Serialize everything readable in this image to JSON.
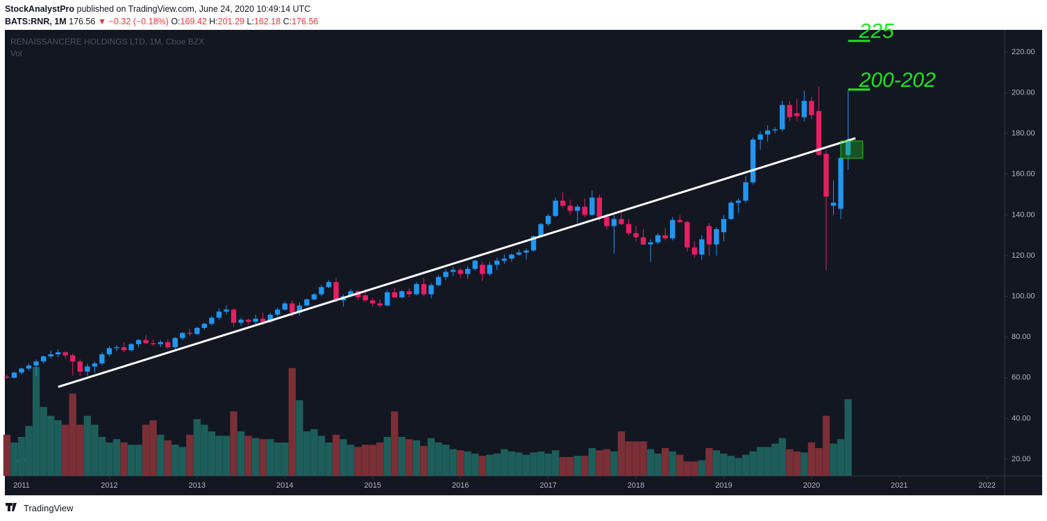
{
  "header": {
    "author": "StockAnalystPro",
    "published": "published on TradingView.com, June 24, 2020 10:49:14 UTC",
    "symbol": "BATS:RNR, 1M",
    "last": "176.56",
    "change": "▼ −0.32 (−0.18%)",
    "ohlc": [
      {
        "label": "O:",
        "value": "169.42"
      },
      {
        "label": "H:",
        "value": "201.29"
      },
      {
        "label": "L:",
        "value": "162.18"
      },
      {
        "label": "C:",
        "value": "176.56"
      }
    ]
  },
  "footer": {
    "brand": "TradingView"
  },
  "chart_data": {
    "type": "candlestick",
    "title": "RENAISSANCERE HOLDINGS LTD, 1M, Cboe BZX",
    "volume_label": "Vol",
    "up_color": "#2196f3",
    "down_color": "#e91e63",
    "vol_up_color": "#1d5e5b",
    "vol_down_color": "#7b2f36",
    "ylim": [
      11.8,
      230.9
    ],
    "yticks": [
      {
        "value": 20,
        "label": "20.00"
      },
      {
        "value": 40,
        "label": "40.00"
      },
      {
        "value": 60,
        "label": "60.00"
      },
      {
        "value": 80,
        "label": "80.00"
      },
      {
        "value": 100,
        "label": "100.00"
      },
      {
        "value": 120,
        "label": "120.00"
      },
      {
        "value": 140,
        "label": "140.00"
      },
      {
        "value": 160,
        "label": "160.00"
      },
      {
        "value": 180,
        "label": "180.00"
      },
      {
        "value": 200,
        "label": "200.00"
      },
      {
        "value": 220,
        "label": "220.00"
      }
    ],
    "xlim": [
      2010.81,
      2022.2
    ],
    "xticks": [
      2011,
      2012,
      2013,
      2014,
      2015,
      2016,
      2017,
      2018,
      2019,
      2020,
      2021,
      2022
    ],
    "vlim": [
      0,
      100
    ],
    "candles": [
      {
        "t": "2010-11",
        "o": 60.5,
        "h": 61.5,
        "l": 59.5,
        "c": 60,
        "v": 37
      },
      {
        "t": "2010-12",
        "o": 60,
        "h": 63,
        "l": 59.5,
        "c": 62.5,
        "v": 30
      },
      {
        "t": "2011-01",
        "o": 62.5,
        "h": 65,
        "l": 61.5,
        "c": 64.5,
        "v": 35
      },
      {
        "t": "2011-02",
        "o": 64.5,
        "h": 67,
        "l": 63.5,
        "c": 66,
        "v": 45
      },
      {
        "t": "2011-03",
        "o": 66,
        "h": 69,
        "l": 61,
        "c": 68,
        "v": 98
      },
      {
        "t": "2011-04",
        "o": 68,
        "h": 71,
        "l": 67,
        "c": 70.5,
        "v": 62
      },
      {
        "t": "2011-05",
        "o": 70.5,
        "h": 73.5,
        "l": 69.5,
        "c": 71.5,
        "v": 54
      },
      {
        "t": "2011-06",
        "o": 71.5,
        "h": 74,
        "l": 70,
        "c": 72.5,
        "v": 50
      },
      {
        "t": "2011-07",
        "o": 72.5,
        "h": 73,
        "l": 69.5,
        "c": 71,
        "v": 46
      },
      {
        "t": "2011-08",
        "o": 71,
        "h": 72,
        "l": 61,
        "c": 68,
        "v": 74
      },
      {
        "t": "2011-09",
        "o": 68,
        "h": 69,
        "l": 61,
        "c": 63,
        "v": 46
      },
      {
        "t": "2011-10",
        "o": 63,
        "h": 67,
        "l": 61,
        "c": 65.5,
        "v": 54
      },
      {
        "t": "2011-11",
        "o": 65.5,
        "h": 68,
        "l": 62.5,
        "c": 67,
        "v": 46
      },
      {
        "t": "2011-12",
        "o": 67,
        "h": 72.5,
        "l": 66,
        "c": 71.5,
        "v": 35
      },
      {
        "t": "2012-01",
        "o": 71.5,
        "h": 75.5,
        "l": 70.5,
        "c": 74.5,
        "v": 30
      },
      {
        "t": "2012-02",
        "o": 74.5,
        "h": 76,
        "l": 73,
        "c": 75,
        "v": 33
      },
      {
        "t": "2012-03",
        "o": 75,
        "h": 77.5,
        "l": 72.5,
        "c": 73.5,
        "v": 30
      },
      {
        "t": "2012-04",
        "o": 73.5,
        "h": 77,
        "l": 73,
        "c": 76.5,
        "v": 28
      },
      {
        "t": "2012-05",
        "o": 76.5,
        "h": 79,
        "l": 75,
        "c": 78.5,
        "v": 28
      },
      {
        "t": "2012-06",
        "o": 78.5,
        "h": 81,
        "l": 76.5,
        "c": 77,
        "v": 46
      },
      {
        "t": "2012-07",
        "o": 77,
        "h": 79,
        "l": 75.5,
        "c": 76.5,
        "v": 50
      },
      {
        "t": "2012-08",
        "o": 76.5,
        "h": 78.5,
        "l": 75,
        "c": 77.5,
        "v": 37
      },
      {
        "t": "2012-09",
        "o": 77.5,
        "h": 79,
        "l": 74,
        "c": 75,
        "v": 32
      },
      {
        "t": "2012-10",
        "o": 75,
        "h": 80,
        "l": 73,
        "c": 79.5,
        "v": 28
      },
      {
        "t": "2012-11",
        "o": 79.5,
        "h": 82.5,
        "l": 78.5,
        "c": 82,
        "v": 26
      },
      {
        "t": "2012-12",
        "o": 82,
        "h": 84,
        "l": 80.5,
        "c": 81.5,
        "v": 37
      },
      {
        "t": "2013-01",
        "o": 81.5,
        "h": 85,
        "l": 81,
        "c": 84.5,
        "v": 51
      },
      {
        "t": "2013-02",
        "o": 84.5,
        "h": 87,
        "l": 83.5,
        "c": 86.5,
        "v": 46
      },
      {
        "t": "2013-03",
        "o": 86.5,
        "h": 90.5,
        "l": 85.5,
        "c": 89.5,
        "v": 40
      },
      {
        "t": "2013-04",
        "o": 89.5,
        "h": 94,
        "l": 88.5,
        "c": 92.5,
        "v": 36
      },
      {
        "t": "2013-05",
        "o": 92.5,
        "h": 95.5,
        "l": 91,
        "c": 93.5,
        "v": 36
      },
      {
        "t": "2013-06",
        "o": 93.5,
        "h": 94,
        "l": 85,
        "c": 87,
        "v": 58
      },
      {
        "t": "2013-07",
        "o": 87,
        "h": 89.5,
        "l": 85.5,
        "c": 88.5,
        "v": 40
      },
      {
        "t": "2013-08",
        "o": 88.5,
        "h": 89,
        "l": 86,
        "c": 87.5,
        "v": 36
      },
      {
        "t": "2013-09",
        "o": 87.5,
        "h": 91,
        "l": 86.5,
        "c": 89,
        "v": 34
      },
      {
        "t": "2013-10",
        "o": 89,
        "h": 92,
        "l": 86,
        "c": 87.5,
        "v": 33
      },
      {
        "t": "2013-11",
        "o": 87.5,
        "h": 92,
        "l": 87,
        "c": 91,
        "v": 33
      },
      {
        "t": "2013-12",
        "o": 91,
        "h": 94.5,
        "l": 90,
        "c": 93.5,
        "v": 30
      },
      {
        "t": "2014-01",
        "o": 93.5,
        "h": 97.5,
        "l": 93,
        "c": 96.5,
        "v": 30
      },
      {
        "t": "2014-02",
        "o": 96.5,
        "h": 98,
        "l": 90,
        "c": 92,
        "v": 97
      },
      {
        "t": "2014-03",
        "o": 92,
        "h": 97,
        "l": 90.5,
        "c": 95.5,
        "v": 68
      },
      {
        "t": "2014-04",
        "o": 95.5,
        "h": 99,
        "l": 95,
        "c": 98.5,
        "v": 40
      },
      {
        "t": "2014-05",
        "o": 98.5,
        "h": 101.5,
        "l": 98,
        "c": 101,
        "v": 42
      },
      {
        "t": "2014-06",
        "o": 101,
        "h": 105.5,
        "l": 100,
        "c": 104.5,
        "v": 36
      },
      {
        "t": "2014-07",
        "o": 104.5,
        "h": 108,
        "l": 104,
        "c": 107,
        "v": 30
      },
      {
        "t": "2014-08",
        "o": 107,
        "h": 109,
        "l": 97,
        "c": 98,
        "v": 37
      },
      {
        "t": "2014-09",
        "o": 98,
        "h": 101,
        "l": 95,
        "c": 100,
        "v": 33
      },
      {
        "t": "2014-10",
        "o": 100,
        "h": 103.5,
        "l": 99.5,
        "c": 102.5,
        "v": 28
      },
      {
        "t": "2014-11",
        "o": 102.5,
        "h": 103,
        "l": 98,
        "c": 99.5,
        "v": 26
      },
      {
        "t": "2014-12",
        "o": 100.5,
        "h": 103.5,
        "l": 97,
        "c": 98,
        "v": 28
      },
      {
        "t": "2015-01",
        "o": 98,
        "h": 99,
        "l": 95,
        "c": 96.5,
        "v": 28
      },
      {
        "t": "2015-02",
        "o": 96.5,
        "h": 98.5,
        "l": 94.5,
        "c": 95.5,
        "v": 30
      },
      {
        "t": "2015-03",
        "o": 95.5,
        "h": 103,
        "l": 95,
        "c": 102,
        "v": 35
      },
      {
        "t": "2015-04",
        "o": 102,
        "h": 104,
        "l": 99,
        "c": 99.5,
        "v": 58
      },
      {
        "t": "2015-05",
        "o": 99.5,
        "h": 103,
        "l": 99,
        "c": 102.5,
        "v": 35
      },
      {
        "t": "2015-06",
        "o": 102.5,
        "h": 104,
        "l": 99.5,
        "c": 101,
        "v": 33
      },
      {
        "t": "2015-07",
        "o": 101,
        "h": 107,
        "l": 100.5,
        "c": 106,
        "v": 32
      },
      {
        "t": "2015-08",
        "o": 106,
        "h": 109,
        "l": 100,
        "c": 101,
        "v": 27
      },
      {
        "t": "2015-09",
        "o": 101,
        "h": 106.5,
        "l": 99,
        "c": 105.5,
        "v": 34
      },
      {
        "t": "2015-10",
        "o": 105.5,
        "h": 110.5,
        "l": 105,
        "c": 109.5,
        "v": 30
      },
      {
        "t": "2015-11",
        "o": 109.5,
        "h": 113.5,
        "l": 108,
        "c": 112,
        "v": 28
      },
      {
        "t": "2015-12",
        "o": 112,
        "h": 114.5,
        "l": 110,
        "c": 113,
        "v": 24
      },
      {
        "t": "2016-01",
        "o": 113,
        "h": 114,
        "l": 109,
        "c": 111,
        "v": 23
      },
      {
        "t": "2016-02",
        "o": 111,
        "h": 115,
        "l": 108.5,
        "c": 113.5,
        "v": 22
      },
      {
        "t": "2016-03",
        "o": 113.5,
        "h": 118,
        "l": 112.5,
        "c": 117.5,
        "v": 20
      },
      {
        "t": "2016-04",
        "o": 115.5,
        "h": 117,
        "l": 107.5,
        "c": 111,
        "v": 18
      },
      {
        "t": "2016-05",
        "o": 111,
        "h": 117,
        "l": 110,
        "c": 115.5,
        "v": 19
      },
      {
        "t": "2016-06",
        "o": 115.5,
        "h": 119,
        "l": 113,
        "c": 117.5,
        "v": 20
      },
      {
        "t": "2016-07",
        "o": 117.5,
        "h": 120.5,
        "l": 116,
        "c": 118.5,
        "v": 24
      },
      {
        "t": "2016-08",
        "o": 118.5,
        "h": 121,
        "l": 117,
        "c": 120.5,
        "v": 22
      },
      {
        "t": "2016-09",
        "o": 120.5,
        "h": 123,
        "l": 120,
        "c": 121.5,
        "v": 21
      },
      {
        "t": "2016-10",
        "o": 121.5,
        "h": 123.5,
        "l": 118,
        "c": 122.5,
        "v": 19
      },
      {
        "t": "2016-11",
        "o": 122.5,
        "h": 130,
        "l": 122,
        "c": 129.5,
        "v": 21
      },
      {
        "t": "2016-12",
        "o": 129.5,
        "h": 136,
        "l": 129,
        "c": 135.5,
        "v": 22
      },
      {
        "t": "2017-01",
        "o": 135.5,
        "h": 140.5,
        "l": 134.5,
        "c": 139.5,
        "v": 20
      },
      {
        "t": "2017-02",
        "o": 139.5,
        "h": 148.5,
        "l": 139,
        "c": 147,
        "v": 23
      },
      {
        "t": "2017-03",
        "o": 147,
        "h": 151,
        "l": 143.5,
        "c": 144.5,
        "v": 17
      },
      {
        "t": "2017-04",
        "o": 144.5,
        "h": 147.5,
        "l": 140,
        "c": 142,
        "v": 17
      },
      {
        "t": "2017-05",
        "o": 142,
        "h": 145,
        "l": 136,
        "c": 144,
        "v": 18
      },
      {
        "t": "2017-06",
        "o": 144,
        "h": 148,
        "l": 139,
        "c": 140,
        "v": 18
      },
      {
        "t": "2017-07",
        "o": 140,
        "h": 152,
        "l": 139.5,
        "c": 148.5,
        "v": 25
      },
      {
        "t": "2017-08",
        "o": 148.5,
        "h": 150,
        "l": 137,
        "c": 139,
        "v": 23
      },
      {
        "t": "2017-09",
        "o": 139,
        "h": 140.5,
        "l": 133,
        "c": 134.5,
        "v": 24
      },
      {
        "t": "2017-10",
        "o": 134.5,
        "h": 140,
        "l": 121,
        "c": 138,
        "v": 22
      },
      {
        "t": "2017-11",
        "o": 138,
        "h": 142,
        "l": 135,
        "c": 135.5,
        "v": 40
      },
      {
        "t": "2017-12",
        "o": 135.5,
        "h": 138,
        "l": 130,
        "c": 131,
        "v": 31
      },
      {
        "t": "2018-01",
        "o": 131,
        "h": 134.5,
        "l": 127,
        "c": 129,
        "v": 31
      },
      {
        "t": "2018-02",
        "o": 129,
        "h": 133,
        "l": 125,
        "c": 125.5,
        "v": 31
      },
      {
        "t": "2018-03",
        "o": 125.5,
        "h": 128,
        "l": 117,
        "c": 126.5,
        "v": 24
      },
      {
        "t": "2018-04",
        "o": 126.5,
        "h": 131,
        "l": 125.5,
        "c": 130,
        "v": 20
      },
      {
        "t": "2018-05",
        "o": 130,
        "h": 133.5,
        "l": 127.5,
        "c": 128.5,
        "v": 25
      },
      {
        "t": "2018-06",
        "o": 128.5,
        "h": 139,
        "l": 127.5,
        "c": 137.5,
        "v": 22
      },
      {
        "t": "2018-07",
        "o": 137.5,
        "h": 140,
        "l": 136,
        "c": 136.5,
        "v": 19
      },
      {
        "t": "2018-08",
        "o": 136.5,
        "h": 137,
        "l": 122,
        "c": 124,
        "v": 13
      },
      {
        "t": "2018-09",
        "o": 124,
        "h": 127,
        "l": 119,
        "c": 120.5,
        "v": 13
      },
      {
        "t": "2018-10",
        "o": 120.5,
        "h": 130,
        "l": 118,
        "c": 128,
        "v": 14
      },
      {
        "t": "2018-11",
        "o": 134.5,
        "h": 136,
        "l": 120,
        "c": 125.5,
        "v": 25
      },
      {
        "t": "2018-12",
        "o": 125.5,
        "h": 134,
        "l": 120,
        "c": 133,
        "v": 23
      },
      {
        "t": "2019-01",
        "o": 131.5,
        "h": 140,
        "l": 127,
        "c": 138,
        "v": 20
      },
      {
        "t": "2019-02",
        "o": 138,
        "h": 147,
        "l": 137.5,
        "c": 146,
        "v": 18
      },
      {
        "t": "2019-03",
        "o": 146,
        "h": 148,
        "l": 141,
        "c": 147,
        "v": 16
      },
      {
        "t": "2019-04",
        "o": 147,
        "h": 159,
        "l": 146,
        "c": 156,
        "v": 19
      },
      {
        "t": "2019-05",
        "o": 156,
        "h": 178,
        "l": 155,
        "c": 177,
        "v": 22
      },
      {
        "t": "2019-06",
        "o": 177,
        "h": 181,
        "l": 172,
        "c": 179.5,
        "v": 26
      },
      {
        "t": "2019-07",
        "o": 179.5,
        "h": 184,
        "l": 176,
        "c": 181.5,
        "v": 26
      },
      {
        "t": "2019-08",
        "o": 181.5,
        "h": 183,
        "l": 180,
        "c": 182,
        "v": 29
      },
      {
        "t": "2019-09",
        "o": 182,
        "h": 196,
        "l": 181,
        "c": 194,
        "v": 34
      },
      {
        "t": "2019-10",
        "o": 194,
        "h": 196,
        "l": 186,
        "c": 188,
        "v": 24
      },
      {
        "t": "2019-11",
        "o": 190,
        "h": 197,
        "l": 186,
        "c": 188.5,
        "v": 22
      },
      {
        "t": "2019-12",
        "o": 188,
        "h": 201,
        "l": 186,
        "c": 196,
        "v": 21
      },
      {
        "t": "2020-01",
        "o": 196,
        "h": 198,
        "l": 187,
        "c": 189,
        "v": 30
      },
      {
        "t": "2020-02",
        "o": 191,
        "h": 203,
        "l": 169,
        "c": 169.5,
        "v": 25
      },
      {
        "t": "2020-03",
        "o": 170,
        "h": 172,
        "l": 113,
        "c": 149,
        "v": 54
      },
      {
        "t": "2020-04",
        "o": 144.5,
        "h": 157,
        "l": 140,
        "c": 146,
        "v": 29
      },
      {
        "t": "2020-05",
        "o": 143,
        "h": 168,
        "l": 138,
        "c": 168,
        "v": 33
      },
      {
        "t": "2020-06",
        "o": 169.42,
        "h": 201.29,
        "l": 162.18,
        "c": 176.56,
        "v": 69
      }
    ],
    "trendline": {
      "x": [
        "2011-06",
        "2020-07"
      ],
      "y": [
        55.5,
        177.7
      ],
      "color": "#ffffff"
    },
    "box": {
      "x": [
        "2020-05",
        "2020-08"
      ],
      "y": [
        167.8,
        176.3
      ],
      "color": "#22c422"
    },
    "levels": [
      {
        "label": "225",
        "value": 225.5,
        "x": [
          "2020-06",
          "2020-09"
        ],
        "color": "#1ee61e"
      },
      {
        "label": "200-202",
        "value": 201.6,
        "x": [
          "2020-06",
          "2020-09"
        ],
        "color": "#1ee61e"
      }
    ]
  }
}
